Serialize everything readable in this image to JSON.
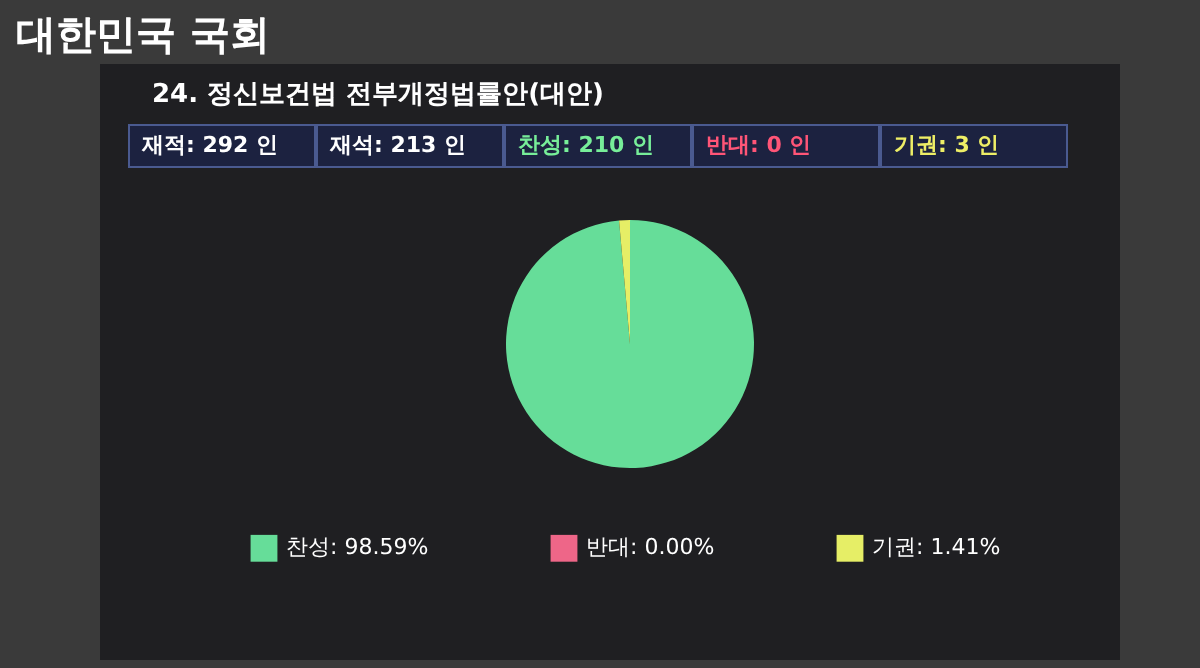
{
  "chart_data": {
    "type": "pie",
    "title": "24. 정신보건법 전부개정법률안(대안)",
    "annotations": [
      "대한민국 국회",
      "재적: 292 인",
      "재석: 213 인",
      "찬성: 210 인",
      "반대: 0 인",
      "기권: 3 인"
    ],
    "categories": [
      "찬성: 98.59%",
      "반대: 0.00%",
      "기권: 1.41%"
    ],
    "values": [
      98.59,
      0,
      1.41
    ],
    "colors": [
      "#66dd99",
      "#ee6688",
      "#e6ee66"
    ],
    "legend": "bottom"
  }
}
